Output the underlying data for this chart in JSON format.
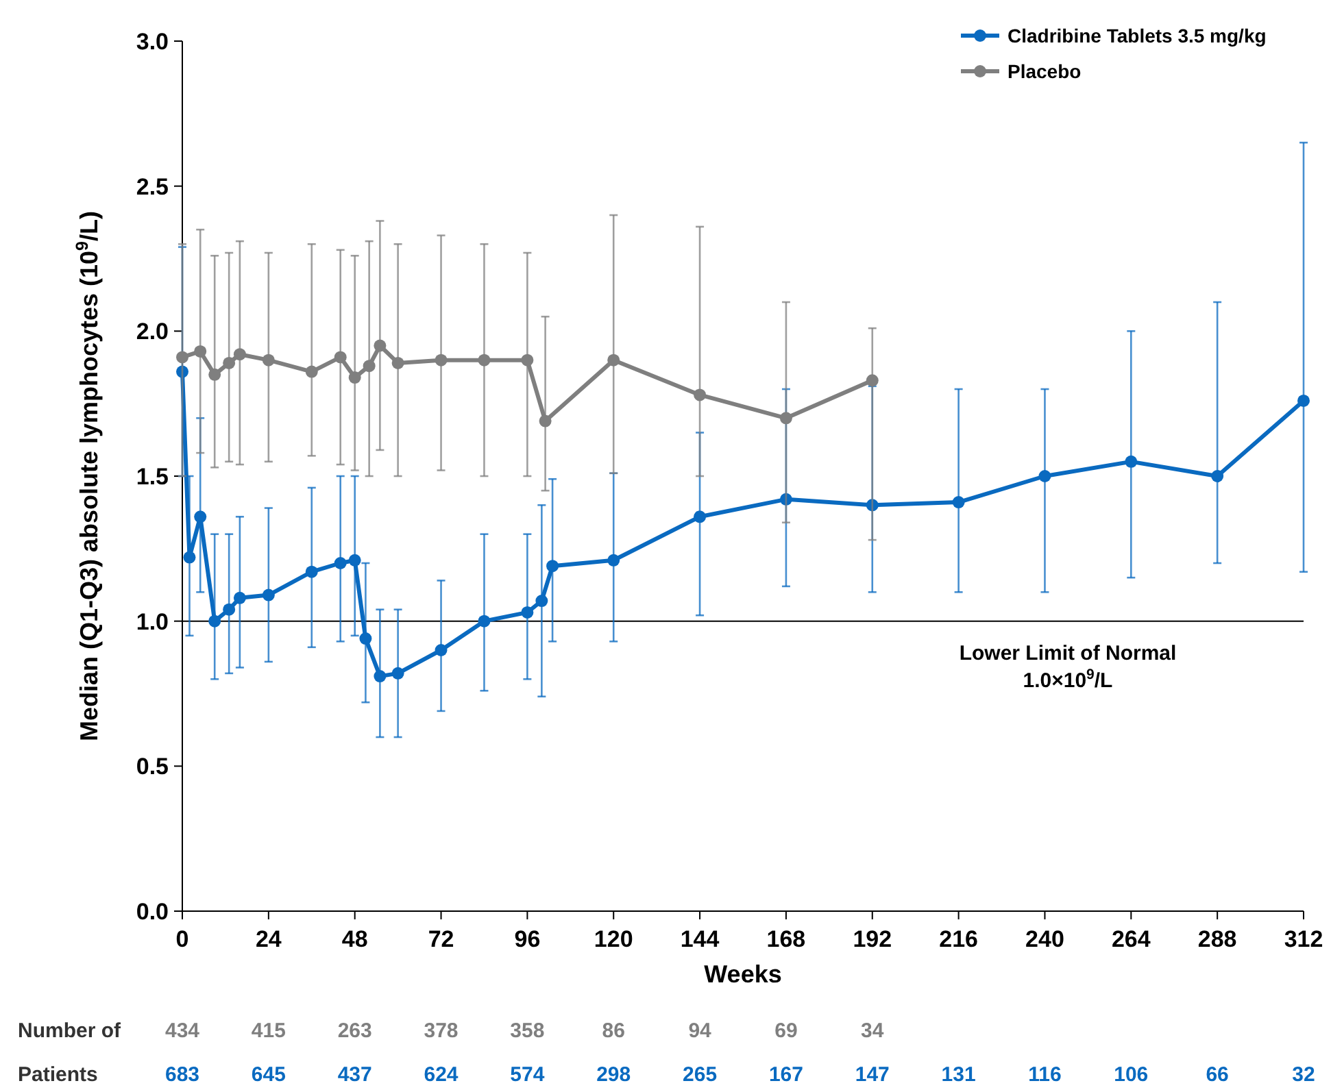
{
  "chart_data": {
    "type": "line",
    "xlabel": "Weeks",
    "ylabel": "Median (Q1-Q3) absolute lymphocytes (10$^{9}$/L)",
    "xlim": [
      0,
      312
    ],
    "xticks": [
      0,
      24,
      48,
      72,
      96,
      120,
      144,
      168,
      192,
      216,
      240,
      264,
      288,
      312
    ],
    "ylim": [
      0,
      3
    ],
    "yticks": [
      {
        "value": 0,
        "label": "0.0"
      },
      {
        "value": 0.5,
        "label": "0.5"
      },
      {
        "value": 1,
        "label": "1.0"
      },
      {
        "value": 1.5,
        "label": "1.5"
      },
      {
        "value": 2,
        "label": "2.0"
      },
      {
        "value": 2.5,
        "label": "2.5"
      },
      {
        "value": 3,
        "label": "3.0"
      }
    ],
    "legend": "top right",
    "marker": "circle",
    "grid": false,
    "series": [
      {
        "name": "Cladribine Tablets 3.5 mg/kg",
        "color": "#0a6ac0",
        "x": [
          0,
          2,
          5,
          9,
          13,
          16,
          24,
          36,
          44,
          48,
          51,
          55,
          60,
          72,
          84,
          96,
          100,
          103,
          120,
          144,
          168,
          192,
          216,
          240,
          264,
          288,
          312
        ],
        "values": [
          1.86,
          1.22,
          1.36,
          1.0,
          1.04,
          1.08,
          1.09,
          1.17,
          1.2,
          1.21,
          0.94,
          0.81,
          0.82,
          0.9,
          1.0,
          1.03,
          1.07,
          1.19,
          1.21,
          1.36,
          1.42,
          1.4,
          1.41,
          1.5,
          1.55,
          1.5,
          1.76
        ],
        "errors": [
          [
            1.5,
            2.29
          ],
          [
            0.95,
            1.5
          ],
          [
            1.1,
            1.7
          ],
          [
            0.8,
            1.3
          ],
          [
            0.82,
            1.3
          ],
          [
            0.84,
            1.36
          ],
          [
            0.86,
            1.39
          ],
          [
            0.91,
            1.46
          ],
          [
            0.93,
            1.5
          ],
          [
            0.95,
            1.5
          ],
          [
            0.72,
            1.2
          ],
          [
            0.6,
            1.04
          ],
          [
            0.6,
            1.04
          ],
          [
            0.69,
            1.14
          ],
          [
            0.76,
            1.3
          ],
          [
            0.8,
            1.3
          ],
          [
            0.74,
            1.4
          ],
          [
            0.93,
            1.49
          ],
          [
            0.93,
            1.51
          ],
          [
            1.02,
            1.65
          ],
          [
            1.12,
            1.8
          ],
          [
            1.1,
            1.81
          ],
          [
            1.1,
            1.8
          ],
          [
            1.1,
            1.8
          ],
          [
            1.15,
            2.0
          ],
          [
            1.2,
            2.1
          ],
          [
            1.17,
            2.65
          ]
        ]
      },
      {
        "name": "Placebo",
        "color": "#7f7f7f",
        "x": [
          0,
          5,
          9,
          13,
          16,
          24,
          36,
          44,
          48,
          52,
          55,
          60,
          72,
          84,
          96,
          101,
          120,
          144,
          168,
          192
        ],
        "values": [
          1.91,
          1.93,
          1.85,
          1.89,
          1.92,
          1.9,
          1.86,
          1.91,
          1.84,
          1.88,
          1.95,
          1.89,
          1.9,
          1.9,
          1.9,
          1.69,
          1.9,
          1.78,
          1.7,
          1.83
        ],
        "errors": [
          [
            1.5,
            2.3
          ],
          [
            1.58,
            2.35
          ],
          [
            1.53,
            2.26
          ],
          [
            1.55,
            2.27
          ],
          [
            1.54,
            2.31
          ],
          [
            1.55,
            2.27
          ],
          [
            1.57,
            2.3
          ],
          [
            1.54,
            2.28
          ],
          [
            1.52,
            2.26
          ],
          [
            1.5,
            2.31
          ],
          [
            1.59,
            2.38
          ],
          [
            1.5,
            2.3
          ],
          [
            1.52,
            2.33
          ],
          [
            1.5,
            2.3
          ],
          [
            1.5,
            2.27
          ],
          [
            1.45,
            2.05
          ],
          [
            1.51,
            2.4
          ],
          [
            1.5,
            2.36
          ],
          [
            1.34,
            2.1
          ],
          [
            1.28,
            2.01
          ]
        ]
      }
    ],
    "ref_lines": [
      {
        "axis": "y",
        "value": 1,
        "label": "Lower Limit of Normal\n1.0×10$^{9}$/L",
        "color": "#000000"
      }
    ],
    "annotations": [
      "Number of",
      "434",
      "415",
      "263",
      "378",
      "358",
      "86",
      "94",
      "69",
      "34",
      "Patients",
      "683",
      "645",
      "437",
      "624",
      "574",
      "298",
      "265",
      "167",
      "147",
      "131",
      "116",
      "106",
      "66",
      "32"
    ]
  }
}
